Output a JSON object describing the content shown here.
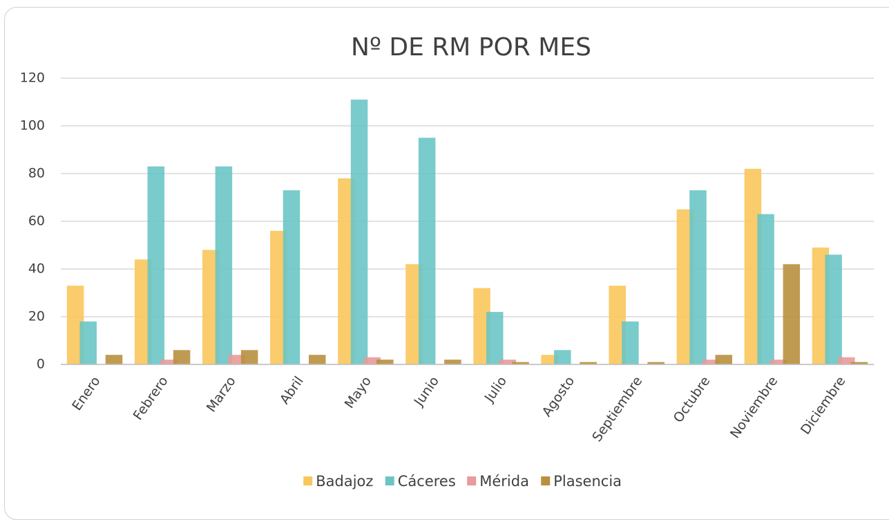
{
  "chart_data": {
    "type": "bar",
    "title": "Nº DE RM POR MES",
    "categories": [
      "Enero",
      "Febrero",
      "Marzo",
      "Abril",
      "Mayo",
      "Junio",
      "Julio",
      "Agosto",
      "Septiembre",
      "Octubre",
      "Noviembre",
      "Diciembre"
    ],
    "series": [
      {
        "name": "Badajoz",
        "color": "#f9c65c",
        "values": [
          33,
          44,
          48,
          56,
          78,
          42,
          32,
          4,
          33,
          65,
          82,
          49
        ]
      },
      {
        "name": "Cáceres",
        "color": "#6cc5c5",
        "values": [
          18,
          83,
          83,
          73,
          111,
          95,
          22,
          6,
          18,
          73,
          63,
          46
        ]
      },
      {
        "name": "Mérida",
        "color": "#e99a9a",
        "values": [
          0,
          2,
          4,
          0,
          3,
          0,
          2,
          0,
          0,
          2,
          2,
          3
        ]
      },
      {
        "name": "Plasencia",
        "color": "#b8903f",
        "values": [
          4,
          6,
          6,
          4,
          2,
          2,
          1,
          1,
          1,
          4,
          42,
          1
        ]
      }
    ],
    "ylim": [
      0,
      120
    ],
    "yticks": [
      0,
      20,
      40,
      60,
      80,
      100,
      120
    ],
    "grid": true,
    "legend": "bottom"
  }
}
